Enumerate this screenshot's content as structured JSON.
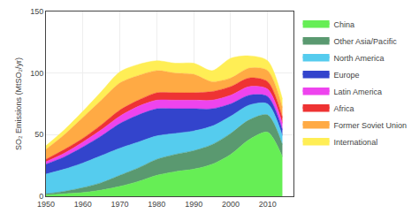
{
  "chart_data": {
    "type": "area",
    "stacked": true,
    "x": [
      1950,
      1955,
      1960,
      1965,
      1970,
      1975,
      1980,
      1985,
      1990,
      1995,
      2000,
      2005,
      2010,
      2014
    ],
    "series": [
      {
        "name": "China",
        "color": "#66ee55",
        "values": [
          1,
          2,
          3,
          5,
          8,
          12,
          17,
          20,
          22,
          26,
          34,
          46,
          52,
          32
        ]
      },
      {
        "name": "Other Asia/Pacific",
        "color": "#5a9970",
        "values": [
          1,
          2,
          4,
          6,
          9,
          11,
          13,
          14,
          15,
          16,
          17,
          16,
          14,
          10
        ]
      },
      {
        "name": "North America",
        "color": "#55ccee",
        "values": [
          16,
          18,
          20,
          22,
          22,
          21,
          19,
          17,
          16,
          15,
          14,
          12,
          9,
          7
        ]
      },
      {
        "name": "Europe",
        "color": "#3344cc",
        "values": [
          8,
          10,
          13,
          16,
          20,
          22,
          22,
          20,
          18,
          14,
          10,
          8,
          6,
          5
        ]
      },
      {
        "name": "Latin America",
        "color": "#ee44ee",
        "values": [
          2,
          3,
          4,
          5,
          6,
          7,
          7,
          7,
          7,
          7,
          7,
          7,
          6,
          5
        ]
      },
      {
        "name": "Africa",
        "color": "#ee3333",
        "values": [
          2,
          3,
          3,
          4,
          5,
          5,
          6,
          6,
          6,
          7,
          7,
          7,
          6,
          5
        ]
      },
      {
        "name": "Former Soviet Union",
        "color": "#ffaa44",
        "values": [
          8,
          12,
          17,
          20,
          22,
          20,
          18,
          16,
          15,
          8,
          7,
          8,
          9,
          8
        ]
      },
      {
        "name": "International",
        "color": "#ffee55",
        "values": [
          3,
          4,
          5,
          7,
          9,
          9,
          8,
          8,
          9,
          9,
          16,
          10,
          8,
          7
        ]
      }
    ],
    "ylabel": "SO₂ Emissions (MtSO₂/yr)",
    "xlim": [
      1950,
      2017
    ],
    "xticks": [
      1950,
      1960,
      1970,
      1980,
      1990,
      2000,
      2010
    ],
    "ylim": [
      0,
      150
    ],
    "yticks": [
      0,
      50,
      100,
      150
    ],
    "grid": true,
    "legend": "right"
  }
}
